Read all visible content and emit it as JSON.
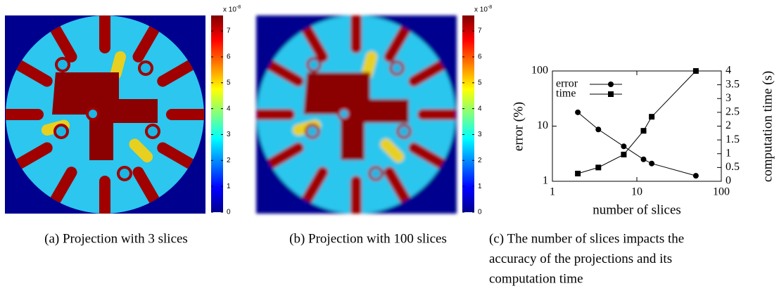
{
  "panels": [
    {
      "caption": "(a) Projection with 3 slices",
      "colorbar": {
        "multiplier": "x 10",
        "exponent": "-8",
        "lim": [
          0,
          7.6
        ],
        "ticks": [
          0,
          1,
          2,
          3,
          4,
          5,
          6,
          7
        ]
      }
    },
    {
      "caption": "(b) Projection with 100 slices",
      "colorbar": {
        "multiplier": "x 10",
        "exponent": "-8",
        "lim": [
          0,
          7.6
        ],
        "ticks": [
          0,
          1,
          2,
          3,
          4,
          5,
          6,
          7
        ]
      }
    }
  ],
  "chart_data": {
    "type": "line",
    "caption_lines": [
      "(c) The number of slices impacts the",
      "accuracy of the projections and its",
      "computation time"
    ],
    "x_label": "number of slices",
    "y_label": "error (%)",
    "y2_label": "computation time (s)",
    "xscale": "log",
    "yscale": "log",
    "xlim": [
      1,
      100
    ],
    "xticks": [
      1,
      10,
      100
    ],
    "ylim": [
      1,
      100
    ],
    "yticks": [
      1,
      10,
      100
    ],
    "y2lim": [
      0,
      4
    ],
    "y2ticks": [
      0,
      0.5,
      1,
      1.5,
      2,
      2.5,
      3,
      3.5,
      4
    ],
    "legend": "top-left",
    "series": [
      {
        "name": "error",
        "color": "#000000",
        "marker": "circle",
        "x": [
          2,
          3.5,
          7,
          12,
          15,
          50
        ],
        "values": [
          17.8,
          8.7,
          4.3,
          2.5,
          2.1,
          1.26
        ]
      },
      {
        "name": "time",
        "color": "#000000",
        "marker": "square",
        "axis": "y2",
        "x": [
          2,
          3.5,
          7,
          12,
          15,
          50
        ],
        "values": [
          0.28,
          0.5,
          0.97,
          1.83,
          2.34,
          4
        ]
      }
    ]
  }
}
